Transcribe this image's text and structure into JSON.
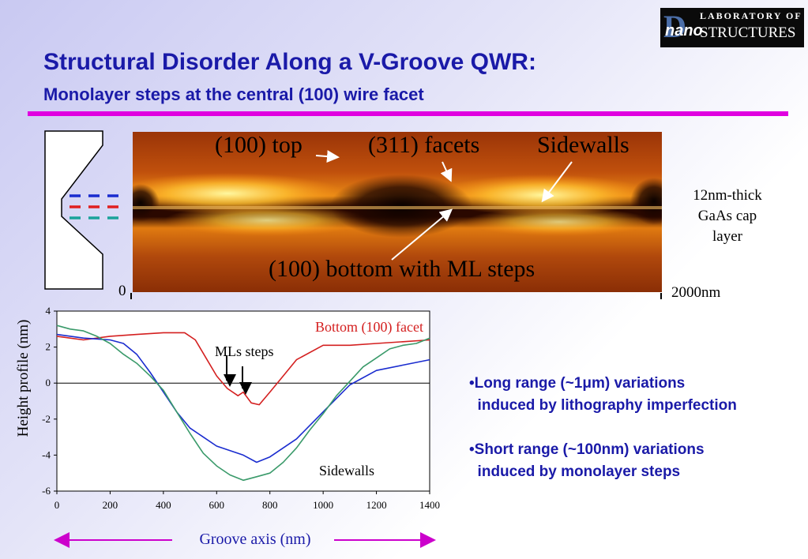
{
  "slide": {
    "title": "Structural Disorder Along a V-Groove QWR:",
    "subtitle": "Monolayer steps at the central (100) wire facet",
    "logo": {
      "line1": "LABORATORY OF",
      "nano": "nano",
      "line2": "STRUCTURES"
    }
  },
  "afm_image": {
    "labels": {
      "top": "(100) top",
      "facets": "(311) facets",
      "sidewalls": "Sidewalls",
      "bottom": "(100) bottom with ML steps"
    },
    "scale_start": "0",
    "scale_end": "2000nm",
    "side_note": [
      "12nm-thick",
      "GaAs cap",
      "layer"
    ],
    "groove_dash_colors": [
      "#1a2ccf",
      "#e02020",
      "#1aa39a"
    ]
  },
  "chart_data": {
    "type": "line",
    "title": "",
    "xlabel": "Groove axis (nm)",
    "ylabel": "Height profile (nm)",
    "xlim": [
      0,
      1400
    ],
    "ylim": [
      -6,
      4
    ],
    "x_ticks": [
      0,
      200,
      400,
      600,
      800,
      1000,
      1200,
      1400
    ],
    "y_ticks": [
      4,
      2,
      0,
      -2,
      -4,
      -6
    ],
    "grid": false,
    "annotations": [
      "Bottom (100) facet",
      "MLs steps",
      "Sidewalls"
    ],
    "series": [
      {
        "color": "#d42020",
        "x": [
          0,
          100,
          200,
          300,
          400,
          480,
          520,
          560,
          600,
          640,
          680,
          700,
          730,
          760,
          800,
          850,
          900,
          1000,
          1100,
          1200,
          1300,
          1400
        ],
        "y": [
          2.6,
          2.4,
          2.6,
          2.7,
          2.8,
          2.8,
          2.4,
          1.4,
          0.4,
          -0.3,
          -0.7,
          -0.5,
          -1.1,
          -1.2,
          -0.5,
          0.4,
          1.3,
          2.1,
          2.1,
          2.2,
          2.3,
          2.4
        ]
      },
      {
        "color": "#1a2ccf",
        "x": [
          0,
          100,
          200,
          250,
          300,
          350,
          400,
          450,
          500,
          600,
          700,
          750,
          800,
          900,
          1000,
          1100,
          1200,
          1300,
          1400
        ],
        "y": [
          2.7,
          2.5,
          2.4,
          2.2,
          1.6,
          0.6,
          -0.5,
          -1.6,
          -2.5,
          -3.5,
          -4.0,
          -4.4,
          -4.1,
          -3.1,
          -1.6,
          -0.1,
          0.7,
          1.0,
          1.3
        ]
      },
      {
        "color": "#3a9a6a",
        "x": [
          0,
          50,
          100,
          150,
          200,
          250,
          300,
          350,
          400,
          450,
          500,
          550,
          600,
          650,
          700,
          750,
          800,
          850,
          900,
          950,
          1000,
          1050,
          1100,
          1150,
          1200,
          1250,
          1300,
          1350,
          1400
        ],
        "y": [
          3.2,
          3.0,
          2.9,
          2.6,
          2.2,
          1.6,
          1.1,
          0.4,
          -0.4,
          -1.6,
          -2.8,
          -3.9,
          -4.6,
          -5.1,
          -5.4,
          -5.2,
          -5.0,
          -4.4,
          -3.6,
          -2.6,
          -1.7,
          -0.7,
          0.1,
          0.9,
          1.4,
          1.9,
          2.1,
          2.2,
          2.5
        ]
      }
    ]
  },
  "bullets": [
    {
      "line1": "•Long range (~1μm) variations",
      "line2": "  induced by lithography imperfection"
    },
    {
      "line1": "•Short range (~100nm) variations",
      "line2": "  induced by monolayer steps"
    }
  ],
  "axis_arrow_color": "#cc00cc"
}
